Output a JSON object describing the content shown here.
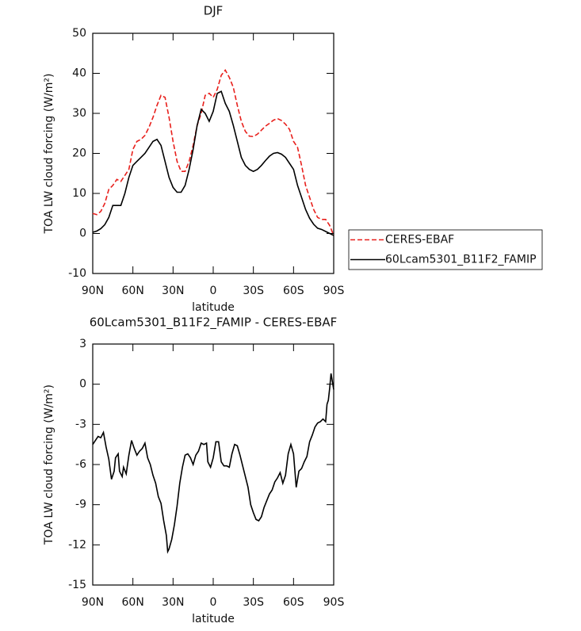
{
  "chart_data": [
    {
      "type": "line",
      "title": "DJF",
      "x_label": "latitude",
      "y_label": "TOA LW cloud forcing (W/m²)",
      "x": [
        90,
        87,
        84,
        81,
        78,
        75,
        72,
        69,
        66,
        63,
        60,
        57,
        54,
        51,
        48,
        45,
        42,
        39,
        36,
        33,
        30,
        27,
        24,
        21,
        18,
        15,
        12,
        9,
        6,
        3,
        0,
        -3,
        -6,
        -9,
        -12,
        -15,
        -18,
        -21,
        -24,
        -27,
        -30,
        -33,
        -36,
        -39,
        -42,
        -45,
        -48,
        -51,
        -54,
        -57,
        -60,
        -63,
        -66,
        -69,
        -72,
        -75,
        -78,
        -81,
        -84,
        -87,
        -90
      ],
      "series": [
        {
          "name": "CERES-EBAF",
          "color": "#e8201c",
          "line_style": "dashed",
          "values": [
            5,
            4.7,
            5.5,
            7.5,
            11,
            12,
            13.5,
            13,
            14.5,
            16,
            21,
            23,
            23.5,
            24.5,
            26.5,
            29,
            32,
            34.5,
            34,
            29,
            23,
            18,
            15.5,
            15.5,
            18,
            22,
            27,
            30,
            34.5,
            35,
            34,
            36,
            39.5,
            40.8,
            39,
            36.5,
            32,
            28,
            25.5,
            24.3,
            24.2,
            24.8,
            25.8,
            26.8,
            27.5,
            28.3,
            28.7,
            28.2,
            27.3,
            26,
            23,
            21.5,
            17,
            12,
            9,
            6,
            4,
            3.5,
            3.5,
            2,
            -0.5
          ]
        },
        {
          "name": "60Lcam5301_B11F2_FAMIP",
          "color": "#000000",
          "line_style": "solid",
          "values": [
            0.3,
            0.6,
            1.2,
            2.2,
            4,
            7,
            7,
            7,
            10,
            14,
            17,
            18,
            19,
            20,
            21.5,
            23,
            23.5,
            22,
            18,
            14,
            11.5,
            10.3,
            10.3,
            12,
            16,
            21,
            27,
            31,
            30,
            28,
            30.5,
            35,
            35.5,
            32.5,
            30.5,
            27,
            23,
            19,
            17,
            16,
            15.5,
            16,
            17,
            18.2,
            19.3,
            20,
            20.2,
            19.8,
            19,
            17.5,
            16,
            12,
            9,
            6,
            3.8,
            2.3,
            1.3,
            1,
            0.5,
            0,
            -0.5
          ]
        }
      ],
      "xlim": [
        90,
        -90
      ],
      "xticks": [
        {
          "value": 90,
          "label": "90N"
        },
        {
          "value": 60,
          "label": "60N"
        },
        {
          "value": 30,
          "label": "30N"
        },
        0,
        {
          "value": -30,
          "label": "30S"
        },
        {
          "value": -60,
          "label": "60S"
        },
        {
          "value": -90,
          "label": "90S"
        }
      ],
      "ylim": [
        -10,
        50
      ],
      "yticks": [
        -10,
        0,
        10,
        20,
        30,
        40,
        50
      ],
      "legend": "outside right"
    },
    {
      "type": "line",
      "title": "60Lcam5301_B11F2_FAMIP - CERES-EBAF",
      "x_label": "latitude",
      "y_label": "TOA LW cloud forcing (W/m²)",
      "color": "#000000",
      "x": [
        90,
        88,
        86,
        84,
        82,
        80,
        78,
        76,
        74,
        73,
        71,
        70,
        68,
        67,
        65,
        63,
        61,
        59,
        57,
        55,
        53,
        51,
        49,
        47,
        45,
        43,
        41,
        39,
        37,
        35,
        34,
        33,
        31,
        29,
        27,
        25,
        23,
        21,
        19,
        17,
        15,
        13,
        11,
        9,
        7,
        5,
        4,
        2,
        0,
        -2,
        -4,
        -6,
        -8,
        -10,
        -12,
        -14,
        -16,
        -18,
        -20,
        -23,
        -26,
        -28,
        -30,
        -32,
        -34,
        -36,
        -38,
        -40,
        -42,
        -44,
        -46,
        -48,
        -50,
        -52,
        -54,
        -56,
        -58,
        -60,
        -62,
        -64,
        -66,
        -68,
        -70,
        -72,
        -74,
        -76,
        -78,
        -80,
        -82,
        -84,
        -85,
        -86,
        -87,
        -88,
        -89,
        -90
      ],
      "values": [
        -4.5,
        -4.2,
        -3.9,
        -4.0,
        -3.6,
        -4.7,
        -5.6,
        -7.1,
        -6.5,
        -5.5,
        -5.2,
        -6.5,
        -6.9,
        -6.2,
        -6.7,
        -5.3,
        -4.2,
        -4.8,
        -5.3,
        -5.0,
        -4.8,
        -4.4,
        -5.5,
        -6.0,
        -6.8,
        -7.4,
        -8.4,
        -8.9,
        -10.2,
        -11.3,
        -12.5,
        -12.3,
        -11.6,
        -10.5,
        -9.1,
        -7.4,
        -6.2,
        -5.3,
        -5.2,
        -5.5,
        -6.0,
        -5.3,
        -5.0,
        -4.4,
        -4.5,
        -4.4,
        -5.8,
        -6.2,
        -5.5,
        -4.3,
        -4.3,
        -5.8,
        -6.1,
        -6.1,
        -6.2,
        -5.2,
        -4.5,
        -4.6,
        -5.3,
        -6.5,
        -7.7,
        -9.0,
        -9.6,
        -10.1,
        -10.2,
        -9.9,
        -9.2,
        -8.7,
        -8.2,
        -7.9,
        -7.3,
        -7.0,
        -6.6,
        -7.4,
        -6.8,
        -5.2,
        -4.5,
        -5.2,
        -7.7,
        -6.5,
        -6.3,
        -5.8,
        -5.4,
        -4.3,
        -3.8,
        -3.2,
        -2.9,
        -2.8,
        -2.6,
        -2.8,
        -1.5,
        -1.2,
        -0.3,
        0.8,
        0.2,
        -0.4
      ],
      "xlim": [
        90,
        -90
      ],
      "xticks": [
        {
          "value": 90,
          "label": "90N"
        },
        {
          "value": 60,
          "label": "60N"
        },
        {
          "value": 30,
          "label": "30N"
        },
        0,
        {
          "value": -30,
          "label": "30S"
        },
        {
          "value": -60,
          "label": "60S"
        },
        {
          "value": -90,
          "label": "90S"
        }
      ],
      "ylim": [
        -15,
        3
      ],
      "yticks": [
        -15,
        -12,
        -9,
        -6,
        -3,
        0,
        3
      ]
    }
  ]
}
